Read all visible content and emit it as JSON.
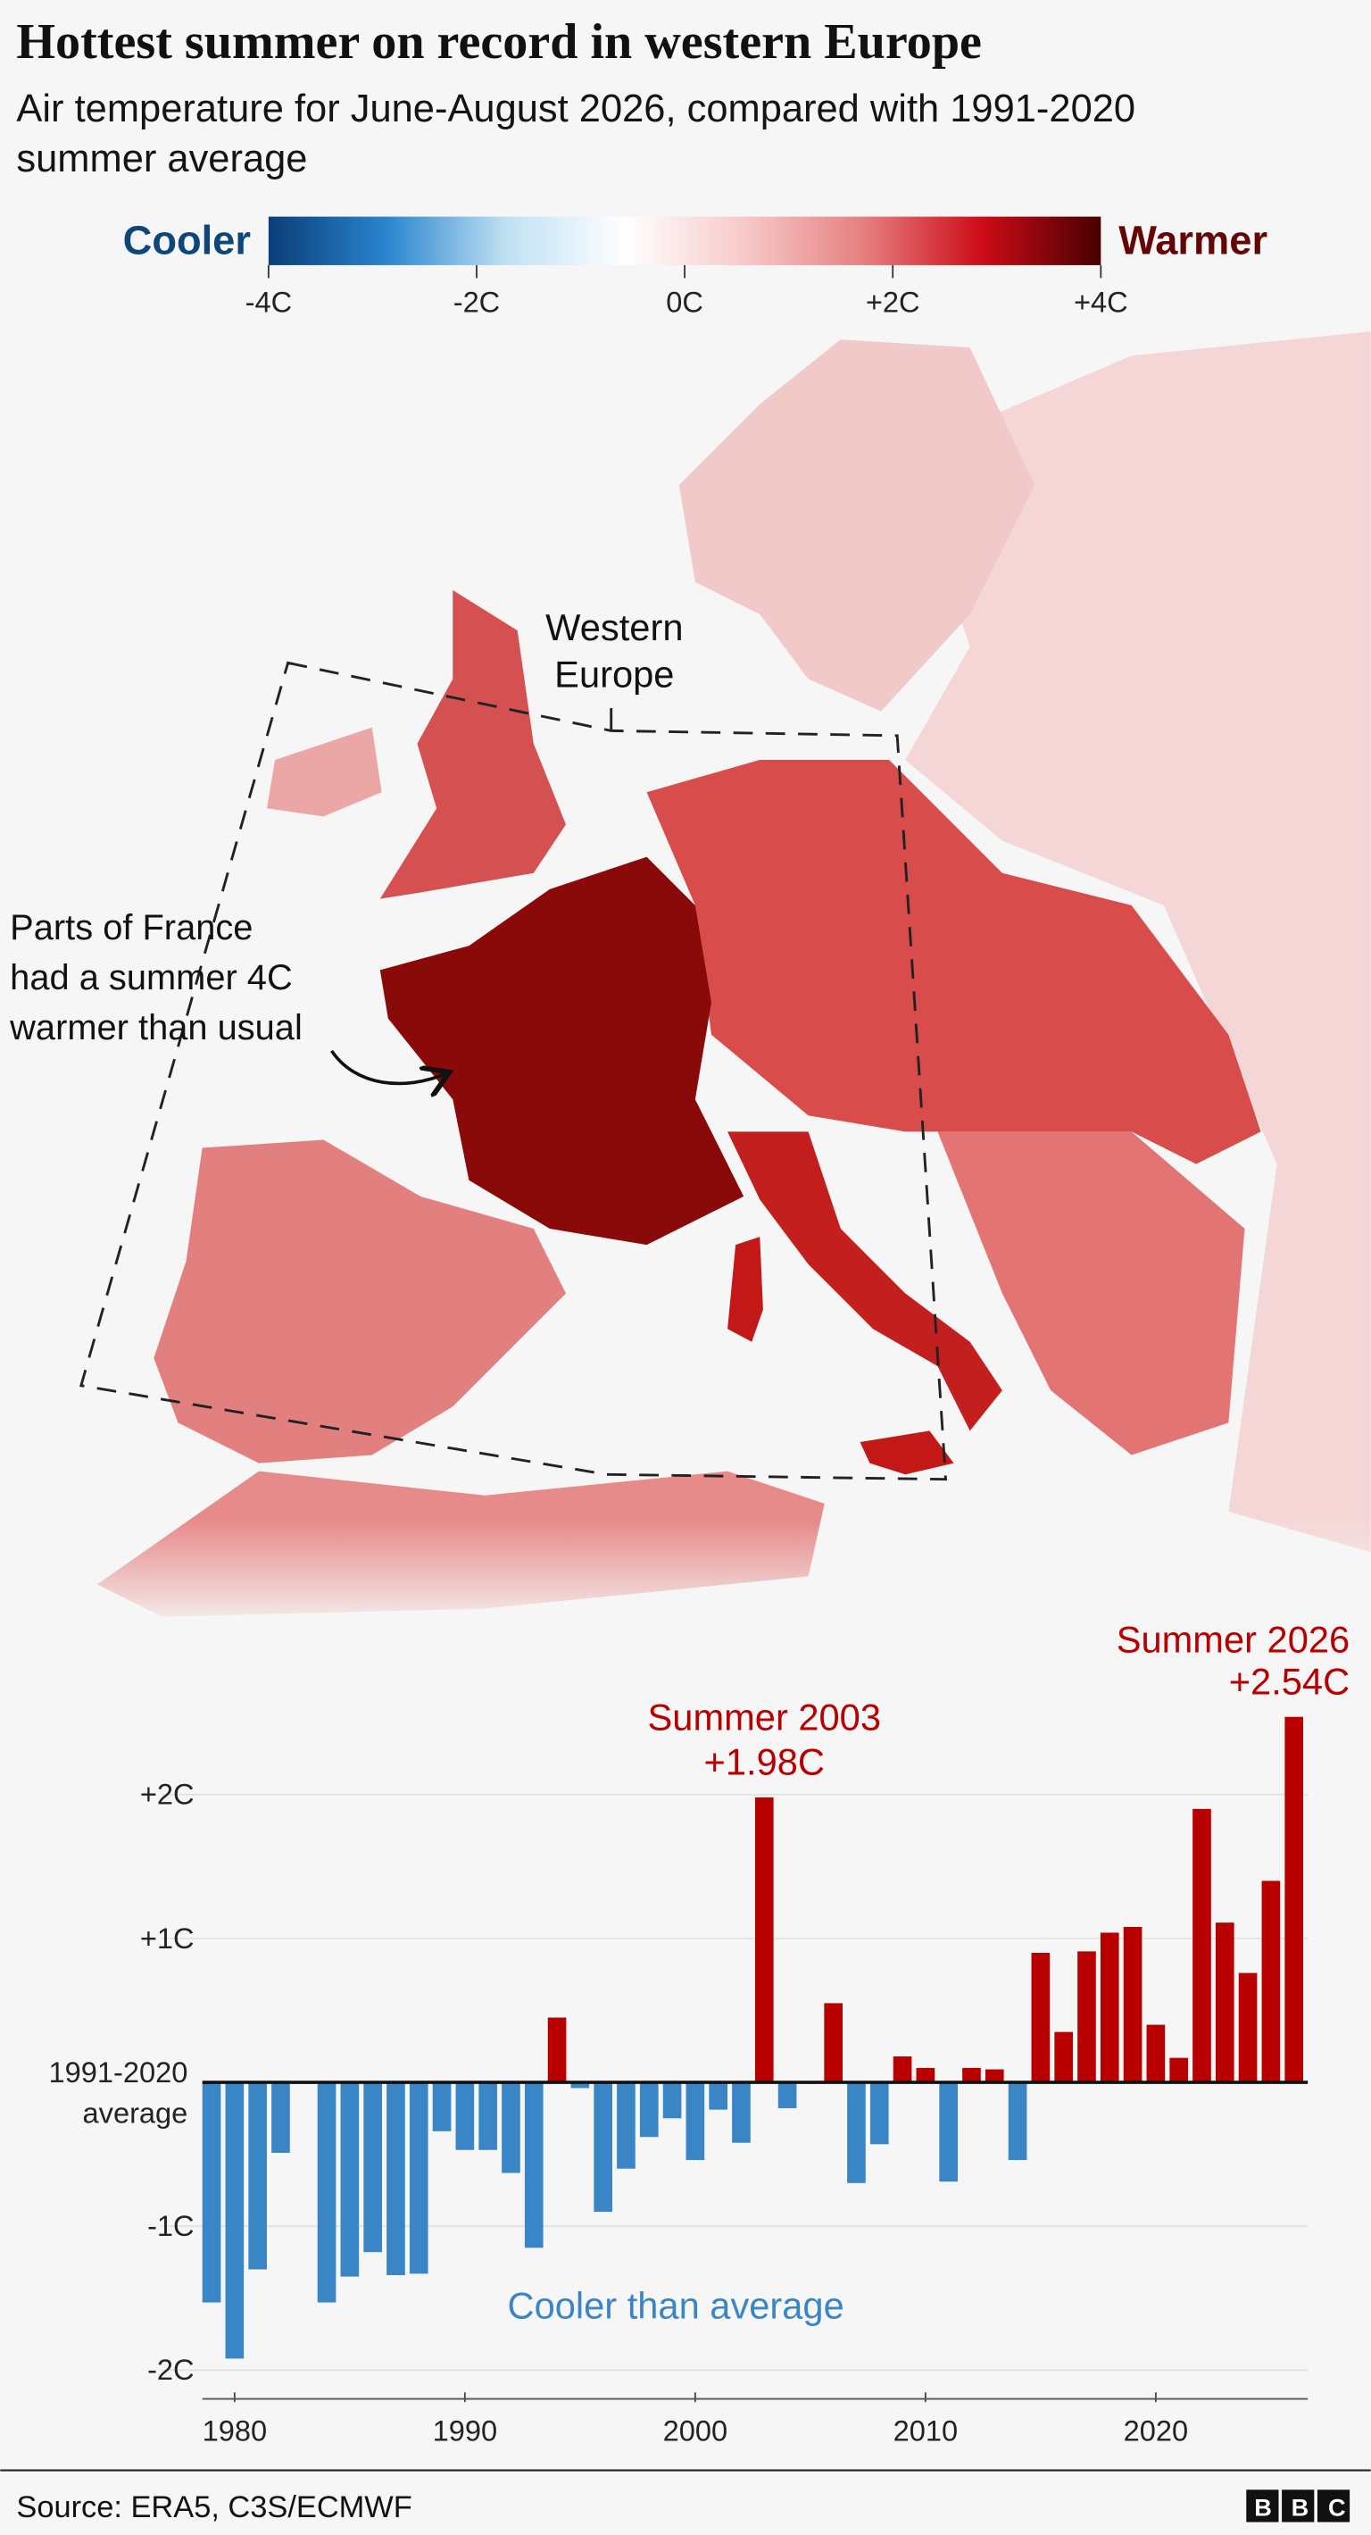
{
  "header": {
    "title": "Hottest summer on record in western Europe",
    "subtitle": "Air temperature for June-August 2026, compared with 1991-2020 summer average"
  },
  "color_scale": {
    "low_label": "Cooler",
    "high_label": "Warmer",
    "range": [
      -4,
      4
    ],
    "ticks": [
      {
        "value": -4,
        "label": "-4C"
      },
      {
        "value": -2,
        "label": "-2C"
      },
      {
        "value": 0,
        "label": "0C"
      },
      {
        "value": 2,
        "label": "+2C"
      },
      {
        "value": 4,
        "label": "+4C"
      }
    ],
    "colors": [
      "#0a3d78",
      "#2a86cf",
      "#bfe1f3",
      "#ffffff",
      "#f7c9c9",
      "#e68080",
      "#cc0c18",
      "#480000"
    ]
  },
  "map": {
    "region_label": "Western Europe",
    "annotation": [
      "Parts of France",
      "had a summer 4C",
      "warmer than usual"
    ]
  },
  "chart_data": {
    "type": "bar",
    "x": [
      1979,
      1980,
      1981,
      1982,
      1983,
      1984,
      1985,
      1986,
      1987,
      1988,
      1989,
      1990,
      1991,
      1992,
      1993,
      1994,
      1995,
      1996,
      1997,
      1998,
      1999,
      2000,
      2001,
      2002,
      2003,
      2004,
      2005,
      2006,
      2007,
      2008,
      2009,
      2010,
      2011,
      2012,
      2013,
      2014,
      2015,
      2016,
      2017,
      2018,
      2019,
      2020,
      2021,
      2022,
      2023,
      2024,
      2025,
      2026
    ],
    "values": [
      -1.53,
      -1.92,
      -1.3,
      -0.49,
      -0.01,
      -1.53,
      -1.35,
      -1.18,
      -1.34,
      -1.33,
      -0.34,
      -0.47,
      -0.47,
      -0.63,
      -1.15,
      0.45,
      -0.04,
      -0.9,
      -0.6,
      -0.38,
      -0.25,
      -0.54,
      -0.19,
      -0.42,
      1.98,
      -0.18,
      -0.01,
      0.55,
      -0.7,
      -0.43,
      0.18,
      0.1,
      -0.69,
      0.1,
      0.09,
      -0.54,
      0.9,
      0.35,
      0.91,
      1.04,
      1.08,
      0.4,
      0.17,
      1.9,
      1.11,
      0.76,
      1.4,
      2.54
    ],
    "value_labels": [
      null,
      null,
      null,
      null,
      null,
      null,
      null,
      null,
      null,
      null,
      null,
      null,
      null,
      null,
      null,
      null,
      null,
      null,
      null,
      null,
      null,
      null,
      null,
      null,
      "+1.98C",
      null,
      null,
      null,
      null,
      null,
      null,
      null,
      null,
      null,
      null,
      null,
      null,
      null,
      null,
      null,
      null,
      null,
      null,
      null,
      null,
      null,
      null,
      "+2.54C"
    ],
    "annotations": [
      "Summer 2003",
      "Summer 2026",
      "Cooler than average"
    ],
    "positive_color": "#b80000",
    "negative_color": "#3a85c6",
    "xlim": [
      1978.6,
      2026.6
    ],
    "xticks": [
      1980,
      1990,
      2000,
      2010,
      2020
    ],
    "ylim": [
      -2.2,
      2.6
    ],
    "yticks": [
      {
        "value": 2,
        "label": "+2C"
      },
      {
        "value": 1,
        "label": "+1C"
      },
      {
        "value": 0,
        "label": "1991-2020 average"
      },
      {
        "value": -1,
        "label": "-1C"
      },
      {
        "value": -2,
        "label": "-2C"
      }
    ],
    "grid": true
  },
  "footer": {
    "source": "Source: ERA5, C3S/ECMWF",
    "logo": "BBC"
  }
}
